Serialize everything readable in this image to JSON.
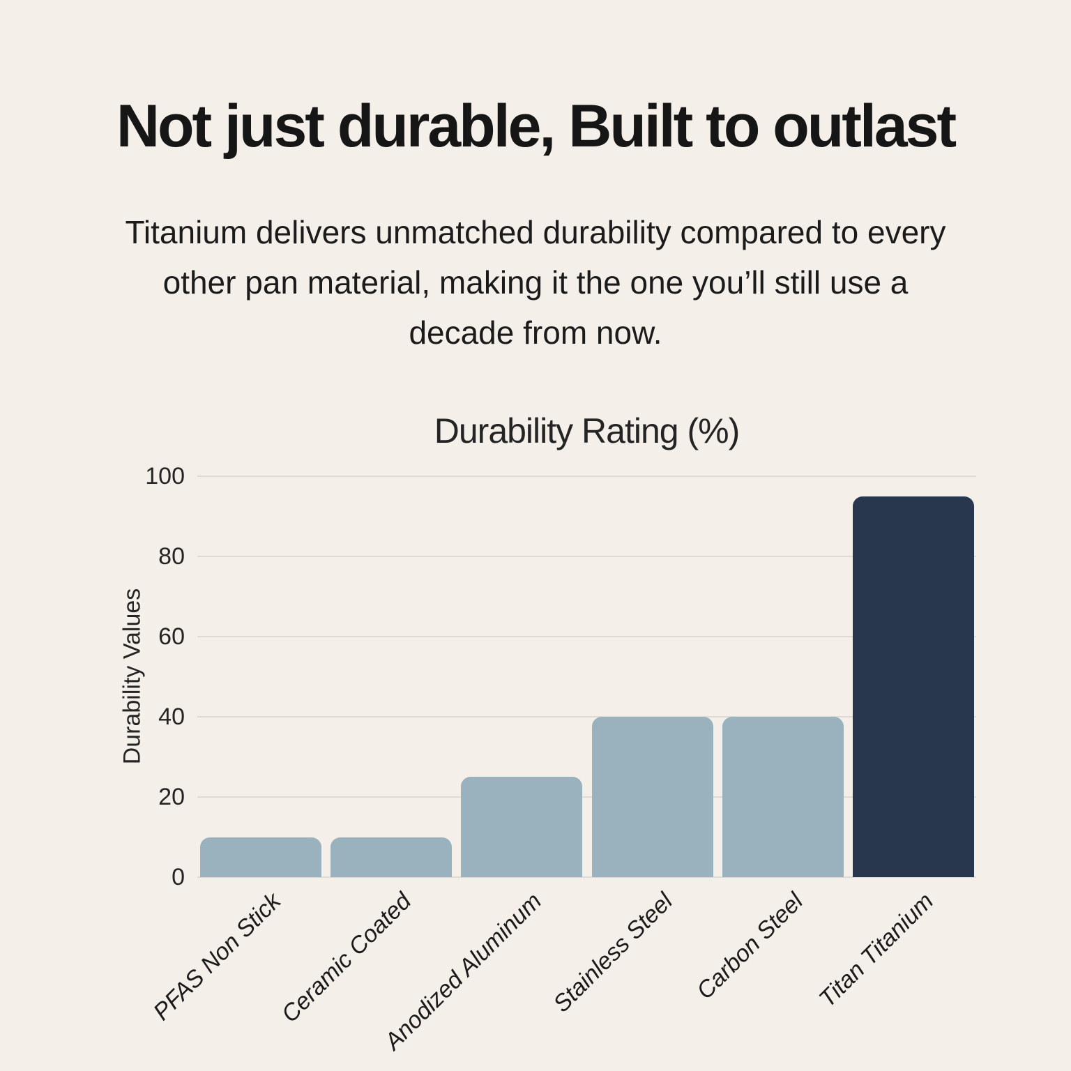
{
  "page": {
    "title": "Not just durable, Built to outlast",
    "subtitle_lines": [
      "Titanium delivers unmatched durability compared to every",
      "other pan material, making it the one you’ll still use a",
      "decade from now."
    ]
  },
  "colors": {
    "background": "#F4EFE9",
    "bar": "#9AB1BE",
    "bar_highlight": "#28374E",
    "gridline": "#DFDAD3",
    "title_text": "#161616",
    "body_text": "#1B1B1B",
    "chart_text": "#242424"
  },
  "chart_data": {
    "type": "bar",
    "title": "Durability Rating (%)",
    "xlabel": "",
    "ylabel": "Durability Values",
    "categories": [
      "PFAS Non Stick",
      "Ceramic Coated",
      "Anodized Aluminum",
      "Stainless Steel",
      "Carbon Steel",
      "Titan Titanium"
    ],
    "values": [
      10,
      10,
      25,
      40,
      40,
      95
    ],
    "highlight_category": "Titan Titanium",
    "ylim": [
      0,
      100
    ],
    "yticks": [
      0,
      20,
      40,
      60,
      80,
      100
    ],
    "grid": true,
    "legend": false,
    "x_tick_rotation_deg": -45,
    "bar_corner_radius_px": 14
  }
}
